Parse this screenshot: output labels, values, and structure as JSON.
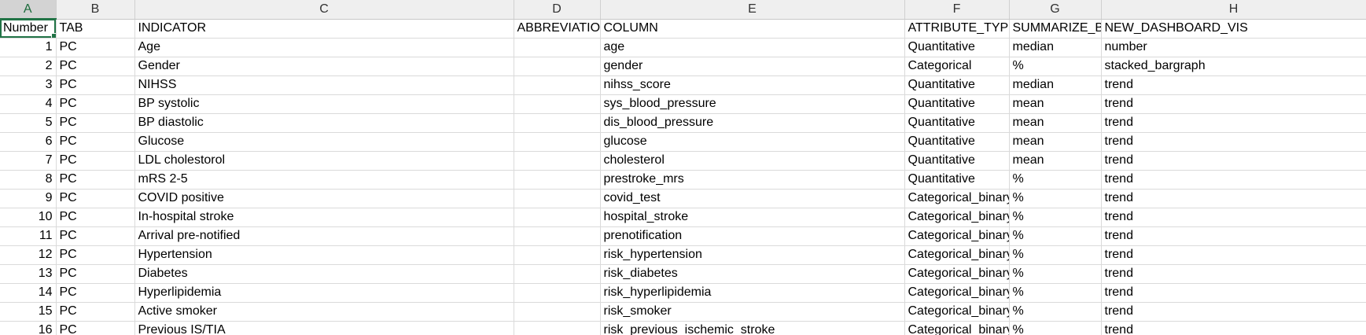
{
  "column_letters": [
    "A",
    "B",
    "C",
    "D",
    "E",
    "F",
    "G",
    "H"
  ],
  "header_row": [
    "Number",
    "TAB",
    "INDICATOR",
    "ABBREVIATION",
    "COLUMN",
    "ATTRIBUTE_TYPE",
    "SUMMARIZE_BY",
    "NEW_DASHBOARD_VIS"
  ],
  "rows": [
    [
      "1",
      "PC",
      "Age",
      "",
      "age",
      "Quantitative",
      "median",
      "number"
    ],
    [
      "2",
      "PC",
      "Gender",
      "",
      "gender",
      "Categorical",
      "%",
      "stacked_bargraph"
    ],
    [
      "3",
      "PC",
      "NIHSS",
      "",
      "nihss_score",
      "Quantitative",
      "median",
      "trend"
    ],
    [
      "4",
      "PC",
      "BP systolic",
      "",
      "sys_blood_pressure",
      "Quantitative",
      "mean",
      "trend"
    ],
    [
      "5",
      "PC",
      "BP diastolic",
      "",
      "dis_blood_pressure",
      "Quantitative",
      "mean",
      "trend"
    ],
    [
      "6",
      "PC",
      "Glucose",
      "",
      "glucose",
      "Quantitative",
      "mean",
      "trend"
    ],
    [
      "7",
      "PC",
      "LDL cholestorol",
      "",
      "cholesterol",
      "Quantitative",
      "mean",
      "trend"
    ],
    [
      "8",
      "PC",
      "mRS 2-5",
      "",
      "prestroke_mrs",
      "Quantitative",
      "%",
      "trend"
    ],
    [
      "9",
      "PC",
      "COVID positive",
      "",
      "covid_test",
      "Categorical_binary",
      "%",
      "trend"
    ],
    [
      "10",
      "PC",
      "In-hospital stroke",
      "",
      "hospital_stroke",
      "Categorical_binary",
      "%",
      "trend"
    ],
    [
      "11",
      "PC",
      "Arrival pre-notified",
      "",
      "prenotification",
      "Categorical_binary",
      "%",
      "trend"
    ],
    [
      "12",
      "PC",
      "Hypertension",
      "",
      "risk_hypertension",
      "Categorical_binary",
      "%",
      "trend"
    ],
    [
      "13",
      "PC",
      "Diabetes",
      "",
      "risk_diabetes",
      "Categorical_binary",
      "%",
      "trend"
    ],
    [
      "14",
      "PC",
      "Hyperlipidemia",
      "",
      "risk_hyperlipidemia",
      "Categorical_binary",
      "%",
      "trend"
    ],
    [
      "15",
      "PC",
      "Active smoker",
      "",
      "risk_smoker",
      "Categorical_binary",
      "%",
      "trend"
    ],
    [
      "16",
      "PC",
      "Previous IS/TIA",
      "",
      "risk_previous_ischemic_stroke",
      "Categorical_binary",
      "%",
      "trend"
    ]
  ],
  "selection": {
    "cell": "A1"
  },
  "colors": {
    "accent": "#217346",
    "header_bg": "#efefef",
    "gridline": "#dadada"
  }
}
